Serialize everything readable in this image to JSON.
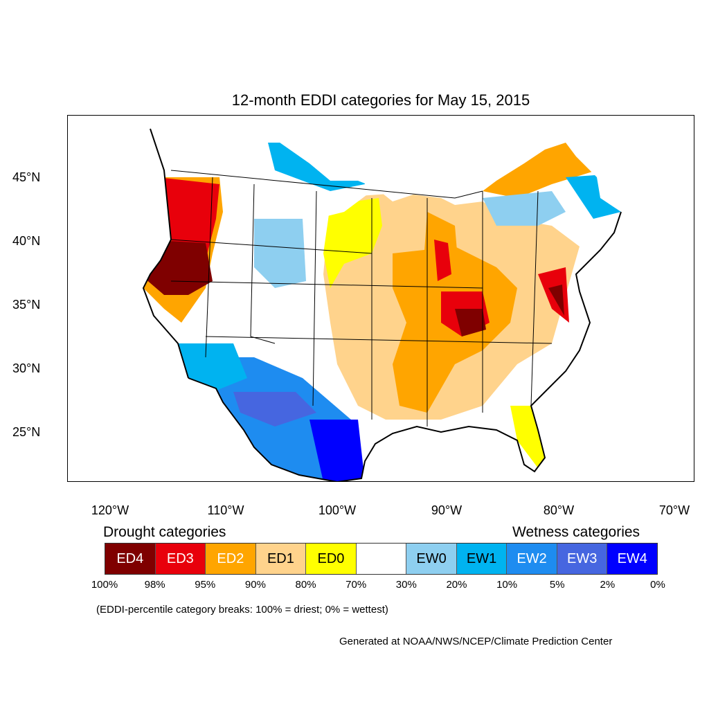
{
  "title": "12-month EDDI categories for May 15, 2015",
  "y_ticks": [
    "45°N",
    "40°N",
    "35°N",
    "30°N",
    "25°N"
  ],
  "x_ticks": [
    "120°W",
    "110°W",
    "100°W",
    "90°W",
    "80°W",
    "70°W"
  ],
  "legend": {
    "drought_heading": "Drought categories",
    "wetness_heading": "Wetness categories",
    "categories": [
      {
        "label": "ED4",
        "color": "#7f0000",
        "text_color": "#ffffff"
      },
      {
        "label": "ED3",
        "color": "#e8000b",
        "text_color": "#ffffff"
      },
      {
        "label": "ED2",
        "color": "#ffa500",
        "text_color": "#ffffff"
      },
      {
        "label": "ED1",
        "color": "#ffd38c",
        "text_color": "#000000"
      },
      {
        "label": "ED0",
        "color": "#ffff00",
        "text_color": "#000000"
      },
      {
        "label": "",
        "color": "#ffffff",
        "text_color": "#000000"
      },
      {
        "label": "EW0",
        "color": "#8ecff0",
        "text_color": "#000000"
      },
      {
        "label": "EW1",
        "color": "#00b3f0",
        "text_color": "#000000"
      },
      {
        "label": "EW2",
        "color": "#1e8cf0",
        "text_color": "#ffffff"
      },
      {
        "label": "EW3",
        "color": "#4666e0",
        "text_color": "#ffffff"
      },
      {
        "label": "EW4",
        "color": "#0000ff",
        "text_color": "#ffffff"
      }
    ],
    "breaks": [
      "100%",
      "98%",
      "95%",
      "90%",
      "80%",
      "70%",
      "30%",
      "20%",
      "10%",
      "5%",
      "2%",
      "0%"
    ]
  },
  "note": "(EDDI-percentile category breaks: 100% = driest; 0% = wettest)",
  "credit": "Generated at NOAA/NWS/NCEP/Climate Prediction Center"
}
